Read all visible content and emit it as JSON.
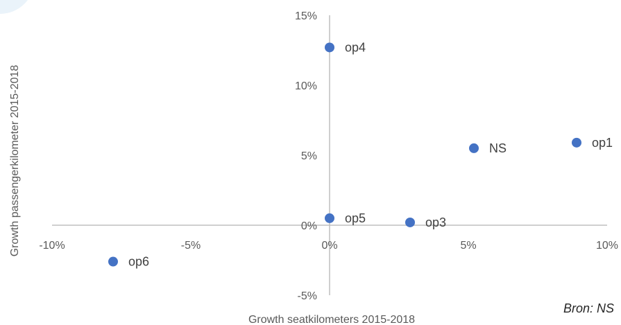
{
  "chart_data": {
    "type": "scatter",
    "xlabel": "Growth seatkilometers 2015-2018",
    "ylabel": "Growth passengerkilometer 2015-2018",
    "xlim": [
      -10,
      10
    ],
    "ylim": [
      -5,
      15
    ],
    "x_ticks": [
      "-10%",
      "-5%",
      "0%",
      "5%",
      "10%"
    ],
    "x_tick_values": [
      -10,
      -5,
      0,
      5,
      10
    ],
    "y_ticks": [
      "-5%",
      "0%",
      "5%",
      "10%",
      "15%"
    ],
    "y_tick_values": [
      -5,
      0,
      5,
      10,
      15
    ],
    "grid": false,
    "marker_color": "#4472c4",
    "axis_color": "#bfbfbf",
    "points": [
      {
        "label": "op4",
        "x": 0.0,
        "y": 12.7
      },
      {
        "label": "NS",
        "x": 5.2,
        "y": 5.5
      },
      {
        "label": "op1",
        "x": 8.9,
        "y": 5.9
      },
      {
        "label": "op5",
        "x": 0.0,
        "y": 0.5
      },
      {
        "label": "op3",
        "x": 2.9,
        "y": 0.2
      },
      {
        "label": "op6",
        "x": -7.8,
        "y": -2.6
      }
    ]
  },
  "source": "Bron: NS"
}
